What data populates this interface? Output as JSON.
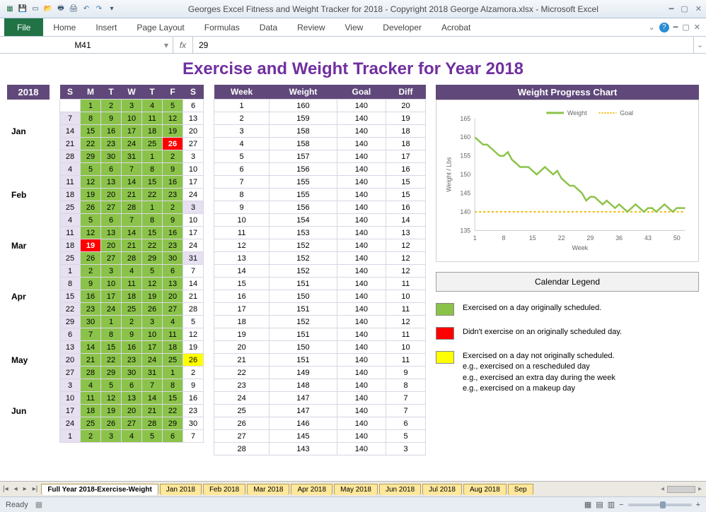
{
  "window": {
    "title": "Georges Excel Fitness and Weight Tracker for 2018 - Copyright 2018 George Alzamora.xlsx  -  Microsoft Excel"
  },
  "ribbon": {
    "file": "File",
    "tabs": [
      "Home",
      "Insert",
      "Page Layout",
      "Formulas",
      "Data",
      "Review",
      "View",
      "Developer",
      "Acrobat"
    ]
  },
  "formula": {
    "cell": "M41",
    "value": "29"
  },
  "page_title": "Exercise and Weight Tracker for Year 2018",
  "year_header": "2018",
  "months": [
    "Jan",
    "Feb",
    "Mar",
    "Apr",
    "May",
    "Jun"
  ],
  "day_headers": [
    "S",
    "M",
    "T",
    "W",
    "T",
    "F",
    "S"
  ],
  "calendar_rows": [
    [
      [
        "",
        "e"
      ],
      [
        "1",
        "g"
      ],
      [
        "2",
        "g"
      ],
      [
        "3",
        "g"
      ],
      [
        "4",
        "g"
      ],
      [
        "5",
        "g"
      ],
      [
        "6",
        "e"
      ]
    ],
    [
      [
        "7",
        "p"
      ],
      [
        "8",
        "g"
      ],
      [
        "9",
        "g"
      ],
      [
        "10",
        "g"
      ],
      [
        "11",
        "g"
      ],
      [
        "12",
        "g"
      ],
      [
        "13",
        "e"
      ]
    ],
    [
      [
        "14",
        "p"
      ],
      [
        "15",
        "g"
      ],
      [
        "16",
        "g"
      ],
      [
        "17",
        "g"
      ],
      [
        "18",
        "g"
      ],
      [
        "19",
        "g"
      ],
      [
        "20",
        "e"
      ]
    ],
    [
      [
        "21",
        "p"
      ],
      [
        "22",
        "g"
      ],
      [
        "23",
        "g"
      ],
      [
        "24",
        "g"
      ],
      [
        "25",
        "g"
      ],
      [
        "26",
        "r"
      ],
      [
        "27",
        "e"
      ]
    ],
    [
      [
        "28",
        "p"
      ],
      [
        "29",
        "g"
      ],
      [
        "30",
        "g"
      ],
      [
        "31",
        "g"
      ],
      [
        "1",
        "g"
      ],
      [
        "2",
        "g"
      ],
      [
        "3",
        "e"
      ]
    ],
    [
      [
        "4",
        "p"
      ],
      [
        "5",
        "g"
      ],
      [
        "6",
        "g"
      ],
      [
        "7",
        "g"
      ],
      [
        "8",
        "g"
      ],
      [
        "9",
        "g"
      ],
      [
        "10",
        "e"
      ]
    ],
    [
      [
        "11",
        "p"
      ],
      [
        "12",
        "g"
      ],
      [
        "13",
        "g"
      ],
      [
        "14",
        "g"
      ],
      [
        "15",
        "g"
      ],
      [
        "16",
        "g"
      ],
      [
        "17",
        "e"
      ]
    ],
    [
      [
        "18",
        "p"
      ],
      [
        "19",
        "g"
      ],
      [
        "20",
        "g"
      ],
      [
        "21",
        "g"
      ],
      [
        "22",
        "g"
      ],
      [
        "23",
        "g"
      ],
      [
        "24",
        "e"
      ]
    ],
    [
      [
        "25",
        "p"
      ],
      [
        "26",
        "g"
      ],
      [
        "27",
        "g"
      ],
      [
        "28",
        "g"
      ],
      [
        "1",
        "g"
      ],
      [
        "2",
        "g"
      ],
      [
        "3",
        "p"
      ]
    ],
    [
      [
        "4",
        "p"
      ],
      [
        "5",
        "g"
      ],
      [
        "6",
        "g"
      ],
      [
        "7",
        "g"
      ],
      [
        "8",
        "g"
      ],
      [
        "9",
        "g"
      ],
      [
        "10",
        "e"
      ]
    ],
    [
      [
        "11",
        "p"
      ],
      [
        "12",
        "g"
      ],
      [
        "13",
        "g"
      ],
      [
        "14",
        "g"
      ],
      [
        "15",
        "g"
      ],
      [
        "16",
        "g"
      ],
      [
        "17",
        "e"
      ]
    ],
    [
      [
        "18",
        "p"
      ],
      [
        "19",
        "r"
      ],
      [
        "20",
        "g"
      ],
      [
        "21",
        "g"
      ],
      [
        "22",
        "g"
      ],
      [
        "23",
        "g"
      ],
      [
        "24",
        "e"
      ]
    ],
    [
      [
        "25",
        "p"
      ],
      [
        "26",
        "g"
      ],
      [
        "27",
        "g"
      ],
      [
        "28",
        "g"
      ],
      [
        "29",
        "g"
      ],
      [
        "30",
        "g"
      ],
      [
        "31",
        "p"
      ]
    ],
    [
      [
        "1",
        "p"
      ],
      [
        "2",
        "g"
      ],
      [
        "3",
        "g"
      ],
      [
        "4",
        "g"
      ],
      [
        "5",
        "g"
      ],
      [
        "6",
        "g"
      ],
      [
        "7",
        "e"
      ]
    ],
    [
      [
        "8",
        "p"
      ],
      [
        "9",
        "g"
      ],
      [
        "10",
        "g"
      ],
      [
        "11",
        "g"
      ],
      [
        "12",
        "g"
      ],
      [
        "13",
        "g"
      ],
      [
        "14",
        "e"
      ]
    ],
    [
      [
        "15",
        "p"
      ],
      [
        "16",
        "g"
      ],
      [
        "17",
        "g"
      ],
      [
        "18",
        "g"
      ],
      [
        "19",
        "g"
      ],
      [
        "20",
        "g"
      ],
      [
        "21",
        "e"
      ]
    ],
    [
      [
        "22",
        "p"
      ],
      [
        "23",
        "g"
      ],
      [
        "24",
        "g"
      ],
      [
        "25",
        "g"
      ],
      [
        "26",
        "g"
      ],
      [
        "27",
        "g"
      ],
      [
        "28",
        "e"
      ]
    ],
    [
      [
        "29",
        "p"
      ],
      [
        "30",
        "g"
      ],
      [
        "1",
        "g"
      ],
      [
        "2",
        "g"
      ],
      [
        "3",
        "g"
      ],
      [
        "4",
        "g"
      ],
      [
        "5",
        "e"
      ]
    ],
    [
      [
        "6",
        "p"
      ],
      [
        "7",
        "g"
      ],
      [
        "8",
        "g"
      ],
      [
        "9",
        "g"
      ],
      [
        "10",
        "g"
      ],
      [
        "11",
        "g"
      ],
      [
        "12",
        "e"
      ]
    ],
    [
      [
        "13",
        "p"
      ],
      [
        "14",
        "g"
      ],
      [
        "15",
        "g"
      ],
      [
        "16",
        "g"
      ],
      [
        "17",
        "g"
      ],
      [
        "18",
        "g"
      ],
      [
        "19",
        "e"
      ]
    ],
    [
      [
        "20",
        "p"
      ],
      [
        "21",
        "g"
      ],
      [
        "22",
        "g"
      ],
      [
        "23",
        "g"
      ],
      [
        "24",
        "g"
      ],
      [
        "25",
        "g"
      ],
      [
        "26",
        "y"
      ]
    ],
    [
      [
        "27",
        "p"
      ],
      [
        "28",
        "g"
      ],
      [
        "29",
        "g"
      ],
      [
        "30",
        "g"
      ],
      [
        "31",
        "g"
      ],
      [
        "1",
        "g"
      ],
      [
        "2",
        "e"
      ]
    ],
    [
      [
        "3",
        "p"
      ],
      [
        "4",
        "g"
      ],
      [
        "5",
        "g"
      ],
      [
        "6",
        "g"
      ],
      [
        "7",
        "g"
      ],
      [
        "8",
        "g"
      ],
      [
        "9",
        "e"
      ]
    ],
    [
      [
        "10",
        "p"
      ],
      [
        "11",
        "g"
      ],
      [
        "12",
        "g"
      ],
      [
        "13",
        "g"
      ],
      [
        "14",
        "g"
      ],
      [
        "15",
        "g"
      ],
      [
        "16",
        "e"
      ]
    ],
    [
      [
        "17",
        "p"
      ],
      [
        "18",
        "g"
      ],
      [
        "19",
        "g"
      ],
      [
        "20",
        "g"
      ],
      [
        "21",
        "g"
      ],
      [
        "22",
        "g"
      ],
      [
        "23",
        "e"
      ]
    ],
    [
      [
        "24",
        "p"
      ],
      [
        "25",
        "g"
      ],
      [
        "26",
        "g"
      ],
      [
        "27",
        "g"
      ],
      [
        "28",
        "g"
      ],
      [
        "29",
        "g"
      ],
      [
        "30",
        "e"
      ]
    ],
    [
      [
        "1",
        "p"
      ],
      [
        "2",
        "g"
      ],
      [
        "3",
        "g"
      ],
      [
        "4",
        "g"
      ],
      [
        "5",
        "g"
      ],
      [
        "6",
        "g"
      ],
      [
        "7",
        "e"
      ]
    ]
  ],
  "month_row_spans": [
    0,
    5,
    9,
    13,
    18,
    22,
    25
  ],
  "weight_headers": [
    "Week",
    "Weight",
    "Goal",
    "Diff"
  ],
  "weight_rows": [
    [
      1,
      160,
      140,
      20
    ],
    [
      2,
      159,
      140,
      19
    ],
    [
      3,
      158,
      140,
      18
    ],
    [
      4,
      158,
      140,
      18
    ],
    [
      5,
      157,
      140,
      17
    ],
    [
      6,
      156,
      140,
      16
    ],
    [
      7,
      155,
      140,
      15
    ],
    [
      8,
      155,
      140,
      15
    ],
    [
      9,
      156,
      140,
      16
    ],
    [
      10,
      154,
      140,
      14
    ],
    [
      11,
      153,
      140,
      13
    ],
    [
      12,
      152,
      140,
      12
    ],
    [
      13,
      152,
      140,
      12
    ],
    [
      14,
      152,
      140,
      12
    ],
    [
      15,
      151,
      140,
      11
    ],
    [
      16,
      150,
      140,
      10
    ],
    [
      17,
      151,
      140,
      11
    ],
    [
      18,
      152,
      140,
      12
    ],
    [
      19,
      151,
      140,
      11
    ],
    [
      20,
      150,
      140,
      10
    ],
    [
      21,
      151,
      140,
      11
    ],
    [
      22,
      149,
      140,
      9
    ],
    [
      23,
      148,
      140,
      8
    ],
    [
      24,
      147,
      140,
      7
    ],
    [
      25,
      147,
      140,
      7
    ],
    [
      26,
      146,
      140,
      6
    ],
    [
      27,
      145,
      140,
      5
    ],
    [
      28,
      143,
      140,
      3
    ]
  ],
  "chart": {
    "title": "Weight Progress Chart",
    "series1": "Weight",
    "series2": "Goal",
    "ylabel": "Weight / Lbs",
    "xlabel": "Week",
    "ylim": [
      135,
      165
    ],
    "yticks": [
      135,
      140,
      145,
      150,
      155,
      160,
      165
    ],
    "xticks": [
      1,
      8,
      15,
      22,
      29,
      36,
      43,
      50
    ],
    "weight_color": "#8bc34a",
    "goal_color": "#f0b800",
    "bg": "#ffffff",
    "weight_data": [
      160,
      159,
      158,
      158,
      157,
      156,
      155,
      155,
      156,
      154,
      153,
      152,
      152,
      152,
      151,
      150,
      151,
      152,
      151,
      150,
      151,
      149,
      148,
      147,
      147,
      146,
      145,
      143,
      144,
      144,
      143,
      142,
      143,
      142,
      141,
      142,
      141,
      140,
      141,
      142,
      141,
      140,
      141,
      141,
      140,
      141,
      142,
      141,
      140,
      141,
      141,
      141
    ],
    "goal_value": 140
  },
  "legend": {
    "title": "Calendar Legend",
    "items": [
      {
        "color": "#8bc34a",
        "text": "Exercised on a day originally scheduled."
      },
      {
        "color": "#ff0000",
        "text": "Didn't exercise on an originally scheduled day."
      },
      {
        "color": "#ffff00",
        "text": "Exercised on a day not originally scheduled.\ne.g., exercised on a rescheduled day\ne.g., exercised an extra day during the week\ne.g., exercised on a makeup day"
      }
    ]
  },
  "sheet_tabs": [
    "Full Year 2018-Exercise-Weight",
    "Jan 2018",
    "Feb 2018",
    "Mar 2018",
    "Apr 2018",
    "May 2018",
    "Jun 2018",
    "Jul 2018",
    "Aug 2018",
    "Sep"
  ],
  "status": {
    "label": "Ready",
    "zoom_minus": "−",
    "zoom_plus": "+"
  }
}
